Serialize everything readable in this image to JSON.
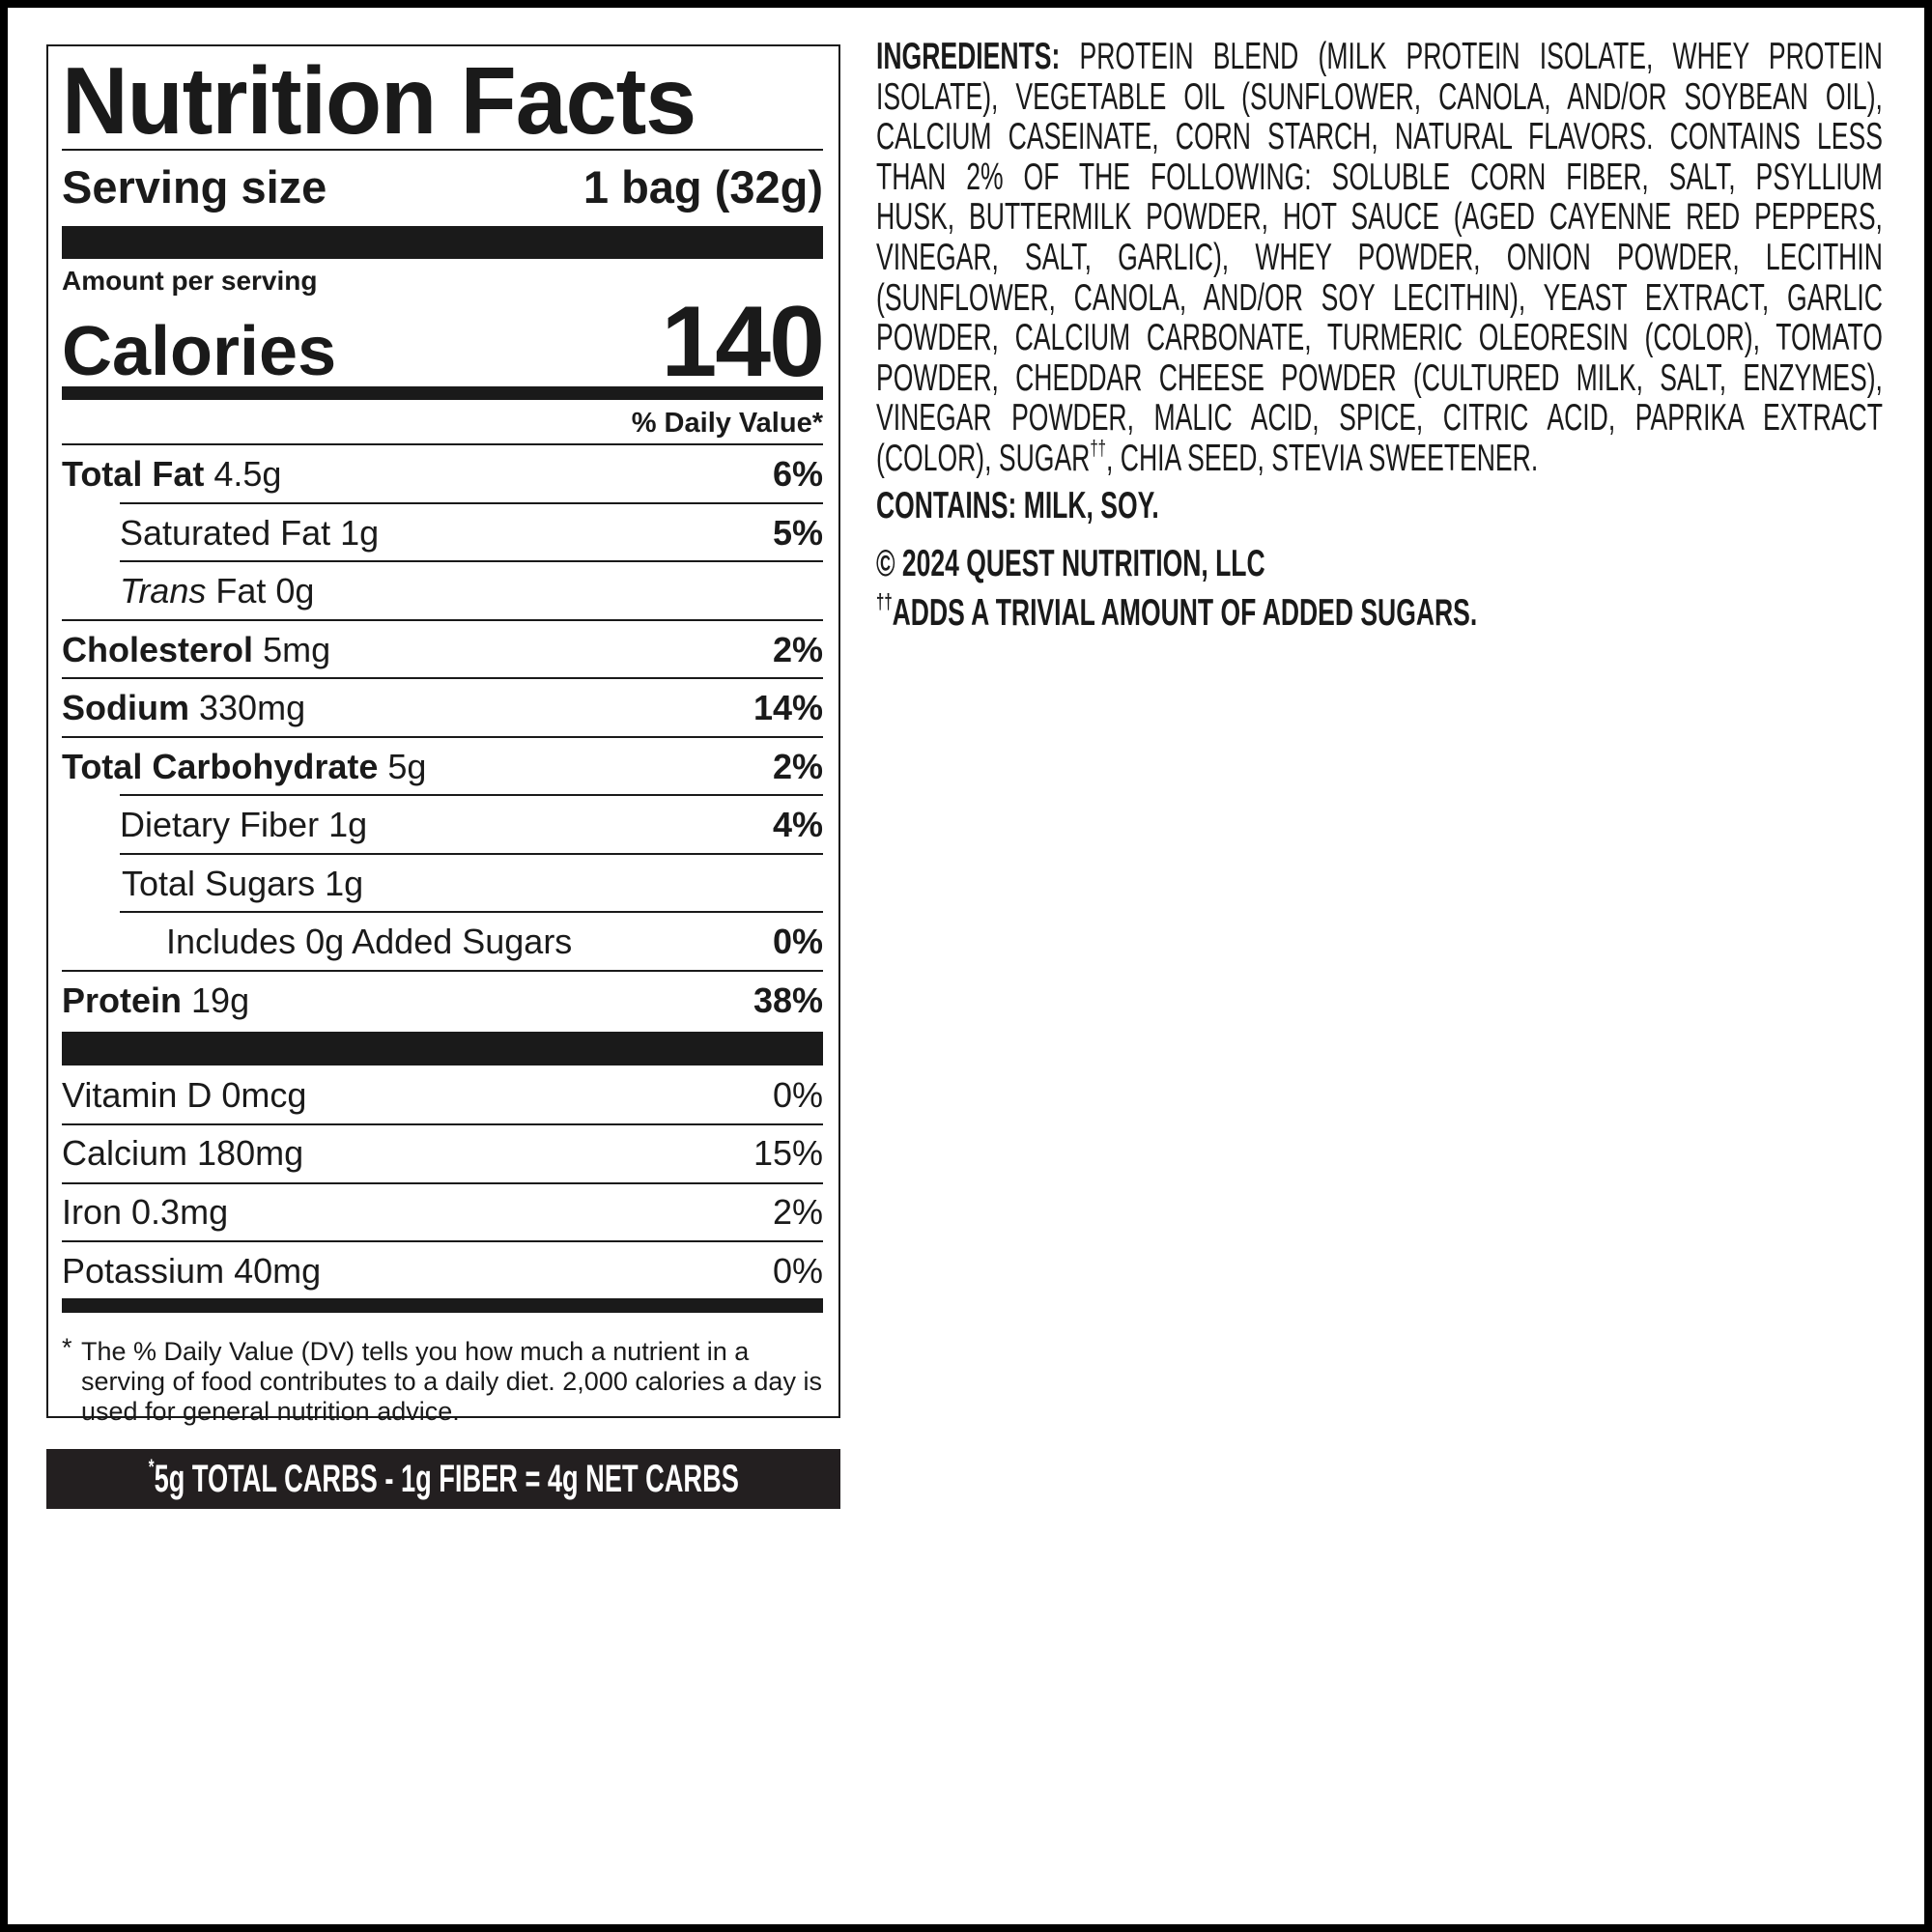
{
  "label": {
    "title": "Nutrition Facts",
    "serving_size_label": "Serving size",
    "serving_size_value": "1 bag (32g)",
    "amount_per_serving": "Amount per serving",
    "calories_label": "Calories",
    "calories_value": "140",
    "daily_value_header": "% Daily Value*",
    "nutrients": [
      {
        "name": "Total Fat",
        "amount": "4.5g",
        "dv": "6%"
      },
      {
        "name": "Saturated Fat",
        "amount": "1g",
        "dv": "5%"
      },
      {
        "name": "Trans",
        "name_rest": "Fat",
        "amount": "0g",
        "dv": ""
      },
      {
        "name": "Cholesterol",
        "amount": "5mg",
        "dv": "2%"
      },
      {
        "name": "Sodium",
        "amount": "330mg",
        "dv": "14%"
      },
      {
        "name": "Total Carbohydrate",
        "amount": "5g",
        "dv": "2%"
      },
      {
        "name": "Dietary Fiber",
        "amount": "1g",
        "dv": "4%"
      },
      {
        "name": "Total Sugars",
        "amount": "1g",
        "dv": ""
      },
      {
        "name": "Includes 0g Added Sugars",
        "amount": "",
        "dv": "0%"
      },
      {
        "name": "Protein",
        "amount": "19g",
        "dv": "38%"
      }
    ],
    "vitamins": [
      {
        "text": "Vitamin D 0mcg",
        "dv": "0%"
      },
      {
        "text": "Calcium 180mg",
        "dv": "15%"
      },
      {
        "text": "Iron 0.3mg",
        "dv": "2%"
      },
      {
        "text": "Potassium 40mg",
        "dv": "0%"
      }
    ],
    "footnote_star": "*",
    "footnote": "The % Daily Value (DV) tells you how much a nutrient in a serving of food contributes to a daily diet. 2,000 calories a day is used for general nutrition advice."
  },
  "net_carbs": {
    "star": "*",
    "text": "5g TOTAL CARBS - 1g FIBER = 4g NET CARBS"
  },
  "ingredients": {
    "label": "INGREDIENTS:",
    "lines": [
      "PROTEIN BLEND (MILK PROTEIN ISOLATE, WHEY PROTEIN",
      "ISOLATE), VEGETABLE OIL (SUNFLOWER, CANOLA, AND/OR SOYBEAN OIL),",
      "CALCIUM CASEINATE, CORN STARCH, NATURAL FLAVORS. CONTAINS LESS",
      "THAN 2% OF THE FOLLOWING: SOLUBLE CORN FIBER, SALT, PSYLLIUM",
      "HUSK, BUTTERMILK POWDER, HOT SAUCE (AGED CAYENNE RED PEPPERS,",
      "VINEGAR, SALT, GARLIC), WHEY POWDER, ONION POWDER, LECITHIN",
      "(SUNFLOWER, CANOLA, AND/OR SOY LECITHIN), YEAST EXTRACT, GARLIC",
      "POWDER, CALCIUM CARBONATE, TURMERIC OLEORESIN (COLOR), TOMATO",
      "POWDER, CHEDDAR CHEESE POWDER (CULTURED MILK, SALT, ENZYMES),",
      "VINEGAR POWDER, MALIC ACID, SPICE, CITRIC ACID, PAPRIKA EXTRACT"
    ],
    "last_line_start": "(COLOR), SUGAR",
    "dagger": "††",
    "last_line_end": ", CHIA SEED, STEVIA SWEETENER.",
    "contains": "CONTAINS: MILK, SOY.",
    "copyright": "© 2024 QUEST NUTRITION, LLC",
    "footnote_dagger": "††",
    "footnote": "ADDS A TRIVIAL AMOUNT OF ADDED SUGARS."
  }
}
